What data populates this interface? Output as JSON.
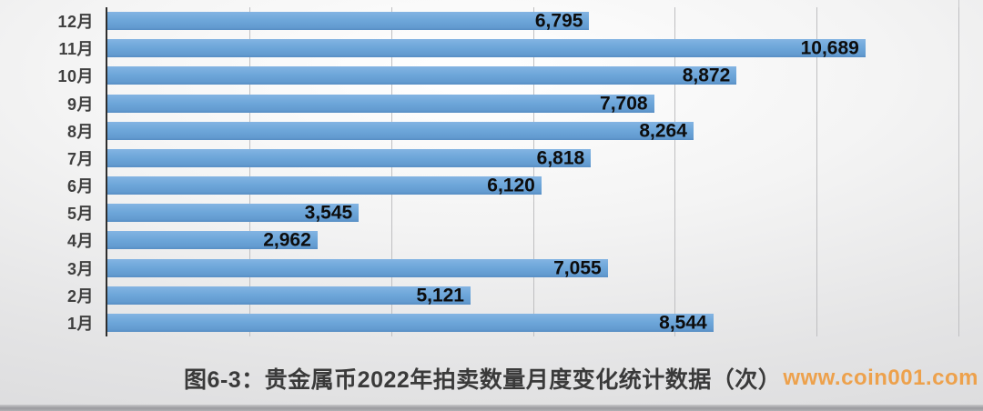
{
  "chart_data": {
    "type": "bar",
    "orientation": "horizontal",
    "categories": [
      "12月",
      "11月",
      "10月",
      "9月",
      "8月",
      "7月",
      "6月",
      "5月",
      "4月",
      "3月",
      "2月",
      "1月"
    ],
    "values": [
      6795,
      10689,
      8872,
      7708,
      8264,
      6818,
      6120,
      3545,
      2962,
      7055,
      5121,
      8544
    ],
    "value_labels": [
      "6,795",
      "10,689",
      "8,872",
      "7,708",
      "8,264",
      "6,818",
      "6,120",
      "3,545",
      "2,962",
      "7,055",
      "5,121",
      "8,544"
    ],
    "title": "图6-3：贵金属币2022年拍卖数量月度变化统计数据（次）",
    "xlabel": "",
    "ylabel": "",
    "xlim": [
      0,
      12000
    ],
    "gridline_interval": 2000,
    "grid": true,
    "legend_position": "none",
    "value_label_position": "inside-end",
    "bar_color": "#6EA7DA"
  },
  "caption": {
    "text": "图6-3：贵金属币2022年拍卖数量月度变化统计数据（次）",
    "watermark": "www.coin001.com"
  },
  "colors": {
    "bar": "#6EA7DA",
    "axis_line": "#2e2e2e",
    "gridline": "#bfbfc1",
    "month_label": "#3f3f3f",
    "value_label": "#0d0d0d",
    "caption_text": "#3a3a3a",
    "watermark": "#eda14c"
  }
}
